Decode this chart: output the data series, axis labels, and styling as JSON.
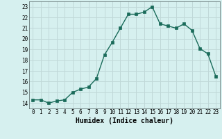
{
  "x": [
    0,
    1,
    2,
    3,
    4,
    5,
    6,
    7,
    8,
    9,
    10,
    11,
    12,
    13,
    14,
    15,
    16,
    17,
    18,
    19,
    20,
    21,
    22,
    23
  ],
  "y": [
    14.3,
    14.3,
    14.0,
    14.2,
    14.3,
    15.0,
    15.3,
    15.5,
    16.3,
    18.5,
    19.7,
    21.0,
    22.3,
    22.3,
    22.5,
    23.0,
    21.4,
    21.2,
    21.0,
    21.4,
    20.8,
    19.1,
    18.6,
    16.5
  ],
  "line_color": "#1a6b5a",
  "marker": "s",
  "marker_size": 2.5,
  "bg_color": "#d6f0ef",
  "grid_color": "#c0d8d8",
  "xlabel": "Humidex (Indice chaleur)",
  "xlim": [
    -0.5,
    23.5
  ],
  "ylim": [
    13.5,
    23.5
  ],
  "yticks": [
    14,
    15,
    16,
    17,
    18,
    19,
    20,
    21,
    22,
    23
  ],
  "xticks": [
    0,
    1,
    2,
    3,
    4,
    5,
    6,
    7,
    8,
    9,
    10,
    11,
    12,
    13,
    14,
    15,
    16,
    17,
    18,
    19,
    20,
    21,
    22,
    23
  ],
  "tick_fontsize": 5.5,
  "xlabel_fontsize": 7
}
